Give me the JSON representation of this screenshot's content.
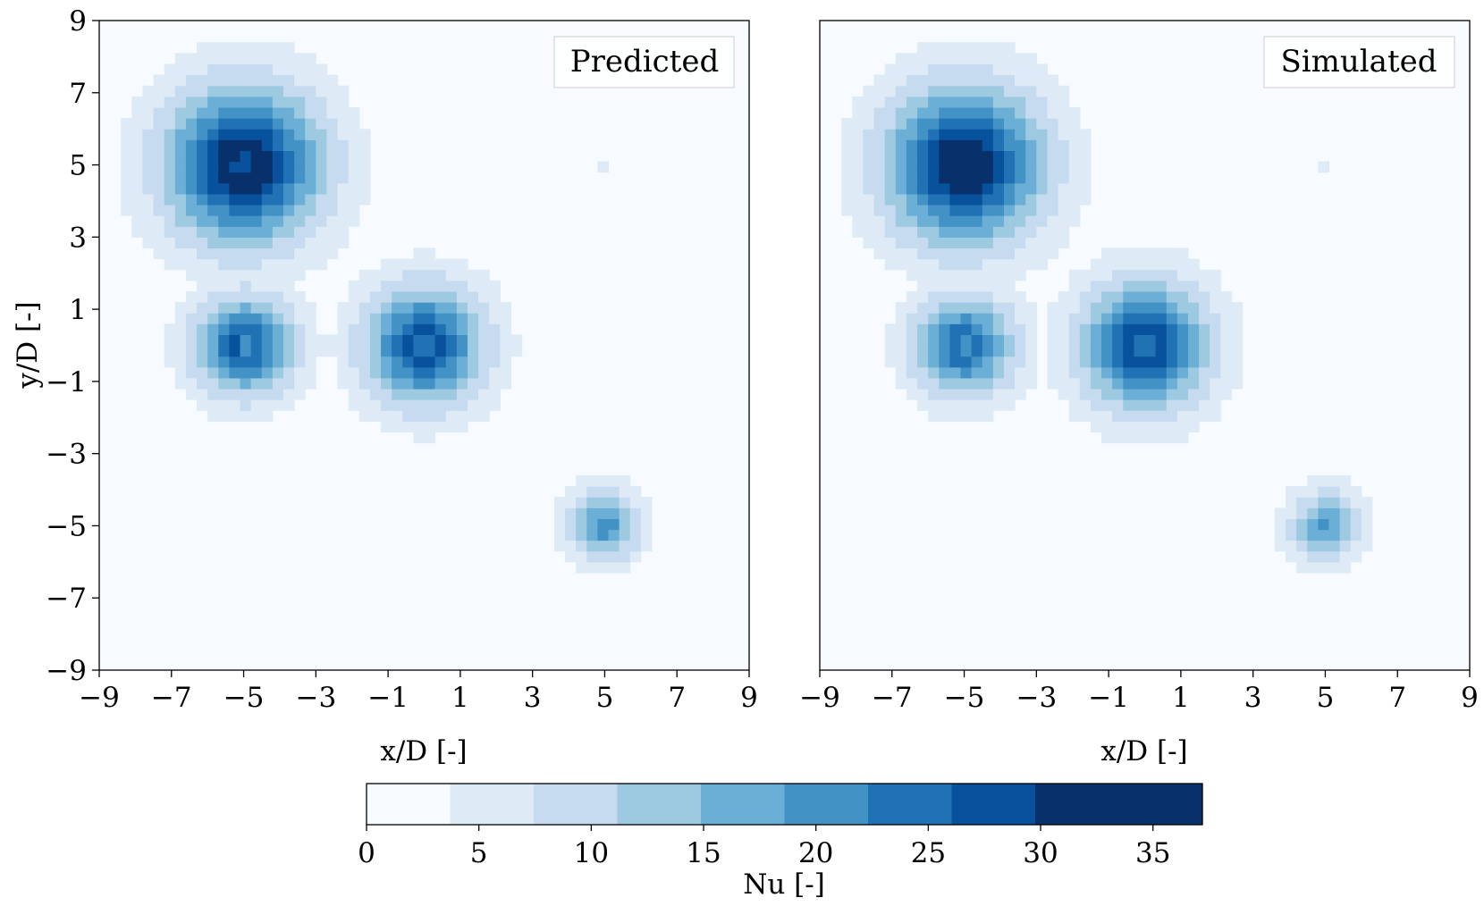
{
  "chart_data": [
    {
      "type": "heatmap",
      "legend": "Predicted",
      "legend_position": "top-right",
      "xlabel": "x/D [-]",
      "ylabel": "y/D [-]",
      "xlim": [
        -9,
        9
      ],
      "ylim": [
        -9,
        9
      ],
      "xticks": [
        -9,
        -7,
        -5,
        -3,
        -1,
        1,
        3,
        5,
        7,
        9
      ],
      "yticks": [
        -9,
        -7,
        -5,
        -3,
        -1,
        1,
        3,
        5,
        7,
        9
      ],
      "xtick_labels": [
        "−9",
        "−7",
        "−5",
        "−3",
        "−1",
        "1",
        "3",
        "5",
        "7",
        "9"
      ],
      "ytick_labels": [
        "−9",
        "−7",
        "−5",
        "−3",
        "−1",
        "1",
        "3",
        "5",
        "7",
        "9"
      ],
      "grid": false,
      "cell_size": 0.3,
      "spots": [
        {
          "x": -5,
          "y": 5,
          "peak": 37,
          "radius": 3.8,
          "center_dip": 28
        },
        {
          "x": -5,
          "y": 0,
          "peak": 29,
          "radius": 2.5,
          "center_dip": 22
        },
        {
          "x": 0,
          "y": 0,
          "peak": 32,
          "radius": 2.9,
          "center_dip": 25
        },
        {
          "x": 5,
          "y": -5,
          "peak": 22,
          "radius": 1.8,
          "center_dip": 0
        },
        {
          "x": 5,
          "y": 5,
          "peak": 6,
          "radius": 0.6,
          "center_dip": 0
        }
      ]
    },
    {
      "type": "heatmap",
      "legend": "Simulated",
      "legend_position": "top-right",
      "xlabel": "x/D [-]",
      "ylabel": "",
      "xlim": [
        -9,
        9
      ],
      "ylim": [
        -9,
        9
      ],
      "xticks": [
        -9,
        -7,
        -5,
        -3,
        -1,
        1,
        3,
        5,
        7,
        9
      ],
      "xtick_labels": [
        "−9",
        "−7",
        "−5",
        "−3",
        "−1",
        "1",
        "3",
        "5",
        "7",
        "9"
      ],
      "grid": false,
      "cell_size": 0.3,
      "spots": [
        {
          "x": -5,
          "y": 5,
          "peak": 37,
          "radius": 3.8,
          "center_dip": 30
        },
        {
          "x": -5,
          "y": 0,
          "peak": 28,
          "radius": 2.5,
          "center_dip": 21
        },
        {
          "x": 0,
          "y": 0,
          "peak": 33,
          "radius": 3.1,
          "center_dip": 24
        },
        {
          "x": 5,
          "y": -5,
          "peak": 20,
          "radius": 1.8,
          "center_dip": 0
        },
        {
          "x": 5,
          "y": 5,
          "peak": 6,
          "radius": 0.4,
          "center_dip": 0
        }
      ]
    }
  ],
  "colorbar": {
    "label": "Nu [-]",
    "min": 0,
    "max": 37.2,
    "levels": 10,
    "ticks": [
      0,
      5,
      10,
      15,
      20,
      25,
      30,
      35
    ],
    "tick_labels": [
      "0",
      "5",
      "10",
      "15",
      "20",
      "25",
      "30",
      "35"
    ],
    "colors": [
      "#f7fbff",
      "#deebf7",
      "#c6dbef",
      "#9ecae1",
      "#6baed6",
      "#4292c6",
      "#2171b5",
      "#08519c",
      "#08306b",
      "#08306b"
    ]
  }
}
